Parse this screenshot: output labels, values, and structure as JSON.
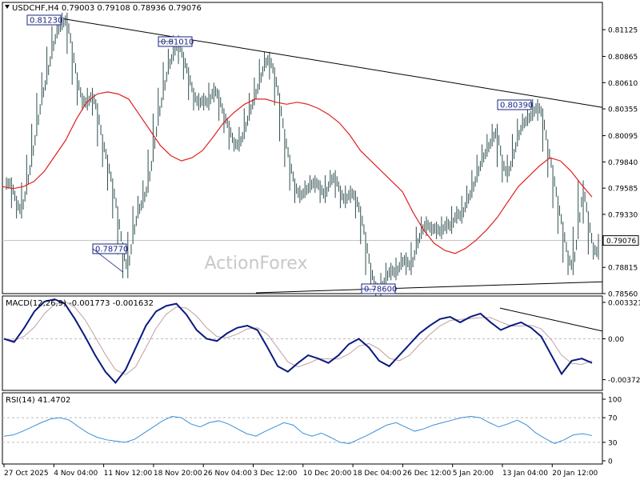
{
  "chart_data": [
    {
      "type": "candlestick",
      "title": "USDCHF,H4",
      "ohlc_header": [
        "0.79003",
        "0.79108",
        "0.78936",
        "0.79076"
      ],
      "watermark": "ActionForex",
      "ylim": [
        0.7856,
        0.8139
      ],
      "y_ticks": [
        "0.81125",
        "0.80865",
        "0.80610",
        "0.80355",
        "0.80095",
        "0.79840",
        "0.79585",
        "0.79330",
        "0.79076",
        "0.78815",
        "0.78560"
      ],
      "current_price": "0.79076",
      "x_ticks": [
        "27 Oct 2025",
        "4 Nov 04:00",
        "11 Nov 12:00",
        "18 Nov 20:00",
        "26 Nov 04:00",
        "3 Dec 12:00",
        "10 Dec 20:00",
        "18 Dec 04:00",
        "26 Dec 12:00",
        "5 Jan 20:00",
        "13 Jan 04:00",
        "20 Jan 12:00"
      ],
      "series": [
        {
          "values": [
            0.7963,
            0.7945,
            0.7935,
            0.7958,
            0.7985,
            0.8015,
            0.8045,
            0.8065,
            0.809,
            0.811,
            0.8118,
            0.8123,
            0.8095,
            0.8065,
            0.8045,
            0.804,
            0.805,
            0.8035,
            0.8005,
            0.7985,
            0.7962,
            0.7935,
            0.79,
            0.7877,
            0.791,
            0.7935,
            0.7945,
            0.796,
            0.799,
            0.8025,
            0.805,
            0.8075,
            0.8088,
            0.8101,
            0.8085,
            0.807,
            0.805,
            0.804,
            0.8045,
            0.804,
            0.8055,
            0.8048,
            0.803,
            0.8018,
            0.8002,
            0.8,
            0.8012,
            0.803,
            0.8045,
            0.806,
            0.8078,
            0.8085,
            0.807,
            0.8045,
            0.801,
            0.7985,
            0.7962,
            0.795,
            0.7955,
            0.796,
            0.7965,
            0.796,
            0.795,
            0.7965,
            0.797,
            0.7955,
            0.7945,
            0.7955,
            0.795,
            0.7935,
            0.791,
            0.788,
            0.7862,
            0.786,
            0.787,
            0.788,
            0.7875,
            0.7885,
            0.789,
            0.788,
            0.79,
            0.7915,
            0.7925,
            0.7918,
            0.792,
            0.7915,
            0.7925,
            0.792,
            0.7935,
            0.793,
            0.7945,
            0.7955,
            0.797,
            0.7985,
            0.7995,
            0.8005,
            0.8015,
            0.7985,
            0.797,
            0.7985,
            0.8005,
            0.802,
            0.8025,
            0.803,
            0.8039,
            0.803,
            0.8,
            0.7975,
            0.7945,
            0.792,
            0.7892,
            0.788,
            0.7915,
            0.796,
            0.793,
            0.79,
            0.7895,
            0.7908
          ]
        },
        {
          "name": "MA",
          "values": [
            0.796,
            0.7958,
            0.796,
            0.7965,
            0.7975,
            0.799,
            0.8005,
            0.8025,
            0.8042,
            0.805,
            0.8052,
            0.805,
            0.8045,
            0.803,
            0.8015,
            0.8,
            0.799,
            0.7985,
            0.7988,
            0.7995,
            0.8008,
            0.8022,
            0.8032,
            0.804,
            0.8045,
            0.8045,
            0.8042,
            0.804,
            0.8042,
            0.804,
            0.8036,
            0.803,
            0.8022,
            0.801,
            0.7995,
            0.7985,
            0.7975,
            0.7965,
            0.7955,
            0.7935,
            0.7918,
            0.7905,
            0.7898,
            0.7895,
            0.79,
            0.7908,
            0.7918,
            0.793,
            0.7945,
            0.796,
            0.797,
            0.798,
            0.7988,
            0.7985,
            0.7975,
            0.7962,
            0.795
          ]
        }
      ],
      "annotations": [
        {
          "label": "0.81230",
          "x_index": 11,
          "y": 0.8123
        },
        {
          "label": "0.81010",
          "x_index": 33,
          "y": 0.8101
        },
        {
          "label": "0.78770",
          "x_index": 23,
          "y": 0.7877
        },
        {
          "label": "0.78600",
          "x_index": 73,
          "y": 0.786
        },
        {
          "label": "0.80390",
          "x_index": 104,
          "y": 0.8039
        }
      ]
    },
    {
      "type": "line",
      "title": "MACD(12,26,9) -0.001773 -0.001632",
      "ylim": [
        -0.0047,
        0.0039
      ],
      "y_ticks": [
        "0.003321",
        "0.00",
        "-0.003723"
      ],
      "series": [
        {
          "values": [
            0.0,
            -0.0003,
            0.001,
            0.0025,
            0.0034,
            0.0036,
            0.0032,
            0.0018,
            0.0002,
            -0.0015,
            -0.003,
            -0.004,
            -0.0028,
            -0.0008,
            0.0012,
            0.0025,
            0.003,
            0.0032,
            0.0022,
            0.0008,
            0.0,
            -0.0002,
            0.0005,
            0.001,
            0.0012,
            0.0008,
            -0.0008,
            -0.0025,
            -0.003,
            -0.0022,
            -0.0015,
            -0.0018,
            -0.0022,
            -0.0015,
            -0.0005,
            0.0,
            -0.0008,
            -0.002,
            -0.0025,
            -0.0015,
            -0.0005,
            0.0005,
            0.0012,
            0.0018,
            0.002,
            0.0015,
            0.002,
            0.0023,
            0.0015,
            0.0008,
            0.0012,
            0.0015,
            0.001,
            0.0002,
            -0.0015,
            -0.0032,
            -0.002,
            -0.0018,
            -0.0022
          ]
        }
      ],
      "annotations": [
        {
          "label": "divergence trendline"
        }
      ]
    },
    {
      "type": "line",
      "title": "RSI(14) 41.4702",
      "ylim": [
        0,
        100
      ],
      "y_ticks": [
        "100",
        "70",
        "30",
        "0"
      ],
      "series": [
        {
          "values": [
            40,
            42,
            48,
            55,
            62,
            68,
            70,
            66,
            55,
            45,
            38,
            34,
            32,
            30,
            35,
            45,
            55,
            65,
            72,
            70,
            60,
            55,
            62,
            65,
            60,
            52,
            44,
            40,
            48,
            55,
            62,
            58,
            45,
            40,
            45,
            38,
            30,
            28,
            35,
            42,
            50,
            58,
            62,
            55,
            48,
            52,
            58,
            62,
            66,
            70,
            72,
            70,
            62,
            55,
            60,
            66,
            58,
            45,
            36,
            28,
            34,
            42,
            44,
            41
          ]
        }
      ]
    }
  ]
}
